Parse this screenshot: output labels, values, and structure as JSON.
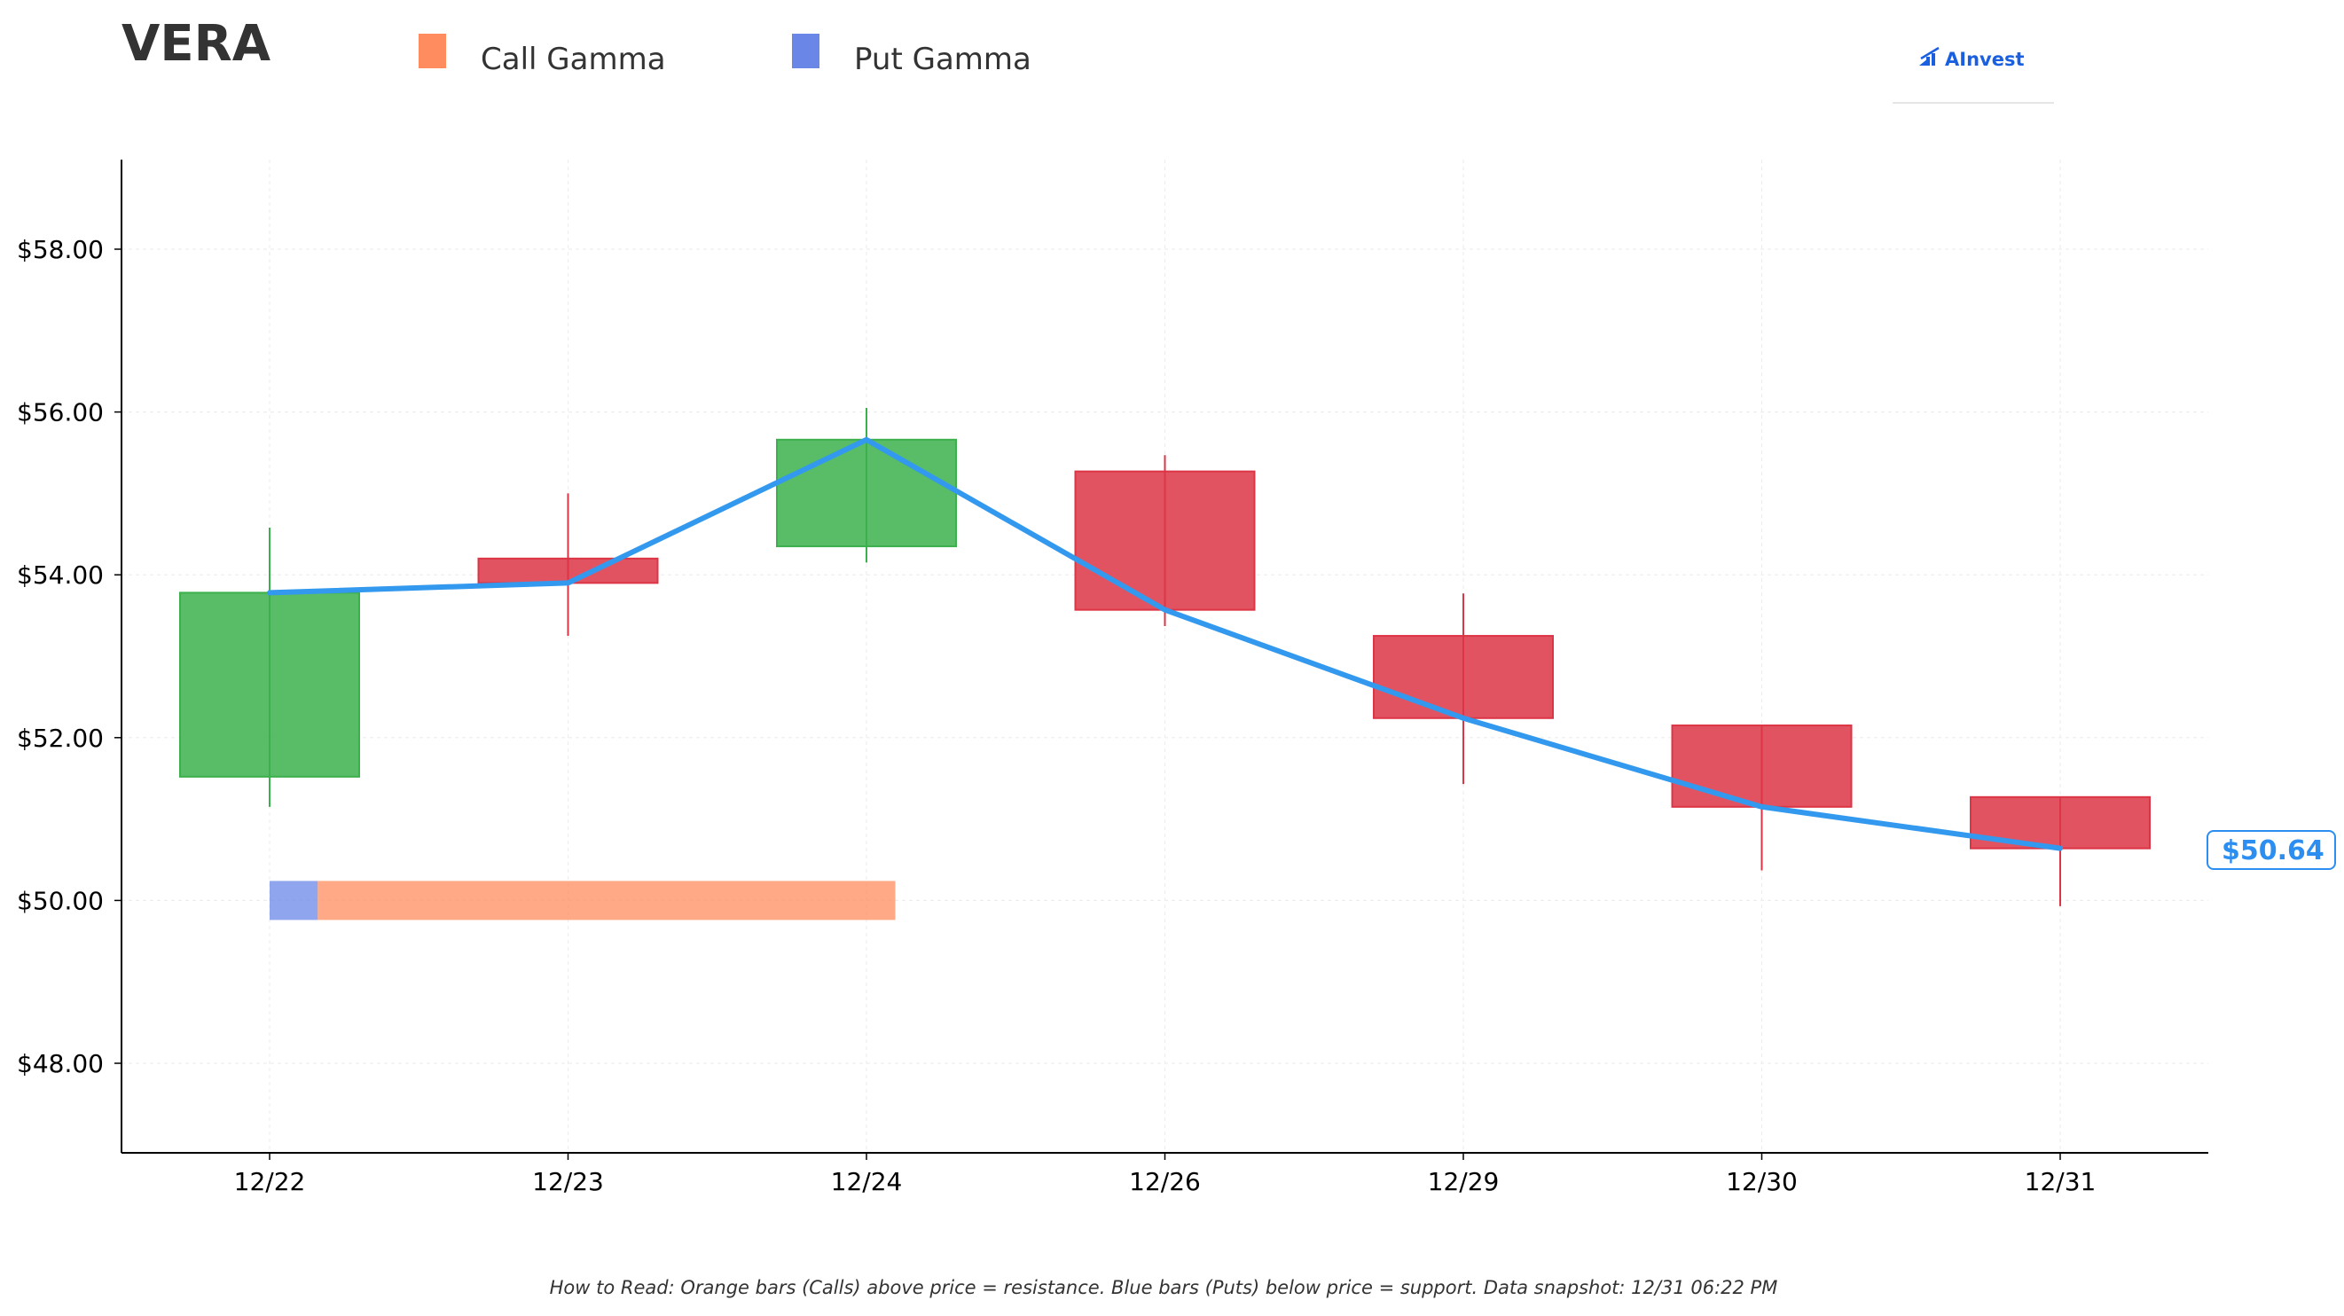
{
  "ticker": "VERA",
  "legend": [
    {
      "label": "Call Gamma",
      "color": "#ff8c5f"
    },
    {
      "label": "Put Gamma",
      "color": "#6a87e8"
    }
  ],
  "logo": {
    "text": "AInvest",
    "color": "#1a5fe0",
    "icon": "chart-bars-icon"
  },
  "footnote": "How to Read: Orange bars (Calls) above price = resistance. Blue bars (Puts) below price = support. Data snapshot: 12/31 06:22 PM",
  "colors": {
    "up": "#3cb04c",
    "down": "#dc3545",
    "price_line": "#3399ee",
    "call_gamma": "#ff8c5f",
    "put_gamma": "#6a87e8",
    "price_tag": "#2b8ef0"
  },
  "chart_data": {
    "type": "candlestick",
    "categories": [
      "12/22",
      "12/23",
      "12/24",
      "12/26",
      "12/29",
      "12/30",
      "12/31"
    ],
    "candles": [
      {
        "date": "12/22",
        "open": 51.52,
        "high": 54.58,
        "low": 51.15,
        "close": 53.78
      },
      {
        "date": "12/23",
        "open": 54.2,
        "high": 55.0,
        "low": 53.25,
        "close": 53.9
      },
      {
        "date": "12/24",
        "open": 54.35,
        "high": 56.05,
        "low": 54.15,
        "close": 55.66
      },
      {
        "date": "12/26",
        "open": 55.27,
        "high": 55.47,
        "low": 53.37,
        "close": 53.57
      },
      {
        "date": "12/29",
        "open": 53.25,
        "high": 53.77,
        "low": 51.43,
        "close": 52.24
      },
      {
        "date": "12/30",
        "open": 52.15,
        "high": 52.15,
        "low": 50.37,
        "close": 51.15
      },
      {
        "date": "12/31",
        "open": 51.27,
        "high": 51.27,
        "low": 49.93,
        "close": 50.64
      }
    ],
    "price_line": [
      53.78,
      53.9,
      55.66,
      53.57,
      52.24,
      51.15,
      50.64
    ],
    "gamma_bars": [
      {
        "strike": 50.0,
        "put_gamma": 0.27,
        "call_gamma": 3.24
      }
    ],
    "gamma_bar_start_index": 0,
    "last_price_label": "$50.64",
    "y_ticks": [
      48,
      50,
      52,
      54,
      56,
      58
    ],
    "y_tick_labels": [
      "$48.00",
      "$50.00",
      "$52.00",
      "$54.00",
      "$56.00",
      "$58.00"
    ],
    "ylim": [
      46.9,
      59.1
    ],
    "xlabel": "",
    "ylabel": "",
    "grid": true
  }
}
